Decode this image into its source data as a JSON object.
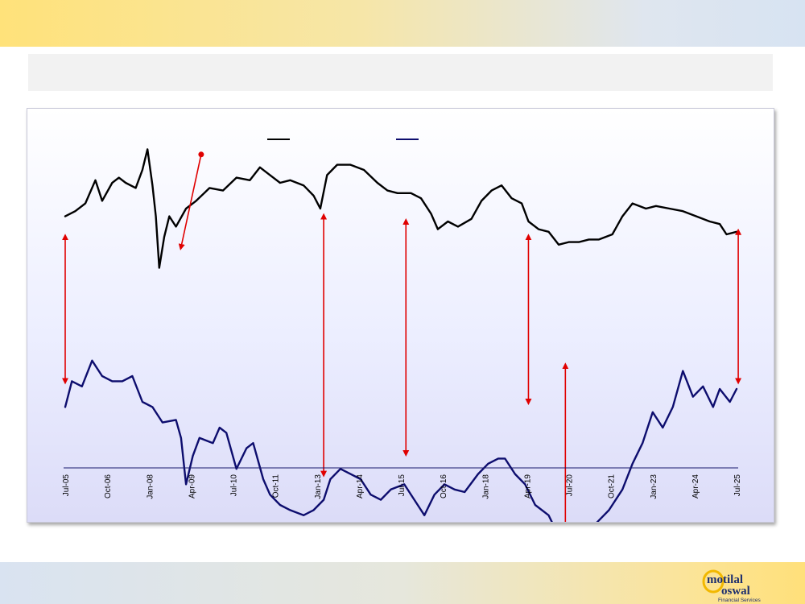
{
  "chart_data": {
    "type": "line",
    "x_tick_labels": [
      "Jul-05",
      "Oct-06",
      "Jan-08",
      "Apr-09",
      "Jul-10",
      "Oct-11",
      "Jan-13",
      "Apr-14",
      "Jul-15",
      "Oct-16",
      "Jan-18",
      "Apr-19",
      "Jul-20",
      "Oct-21",
      "Jan-23",
      "Apr-24",
      "Jul-25"
    ],
    "x_range": [
      "Jul-05",
      "Jul-25"
    ],
    "grid": false,
    "legend_placement": "top-center",
    "series": [
      {
        "color": "#000000",
        "values": [
          [
            2005.5,
            52
          ],
          [
            2005.8,
            54
          ],
          [
            2006.1,
            57
          ],
          [
            2006.4,
            66
          ],
          [
            2006.6,
            58
          ],
          [
            2006.9,
            65
          ],
          [
            2007.1,
            67
          ],
          [
            2007.3,
            65
          ],
          [
            2007.6,
            63
          ],
          [
            2007.8,
            70
          ],
          [
            2007.95,
            78
          ],
          [
            2008.1,
            64
          ],
          [
            2008.2,
            52
          ],
          [
            2008.3,
            32
          ],
          [
            2008.45,
            44
          ],
          [
            2008.6,
            52
          ],
          [
            2008.8,
            48
          ],
          [
            2009.1,
            55
          ],
          [
            2009.4,
            58
          ],
          [
            2009.8,
            63
          ],
          [
            2010.2,
            62
          ],
          [
            2010.6,
            67
          ],
          [
            2011.0,
            66
          ],
          [
            2011.3,
            71
          ],
          [
            2011.6,
            68
          ],
          [
            2011.9,
            65
          ],
          [
            2012.2,
            66
          ],
          [
            2012.6,
            64
          ],
          [
            2012.9,
            60
          ],
          [
            2013.1,
            55
          ],
          [
            2013.3,
            68
          ],
          [
            2013.6,
            72
          ],
          [
            2014.0,
            72
          ],
          [
            2014.4,
            70
          ],
          [
            2014.8,
            65
          ],
          [
            2015.1,
            62
          ],
          [
            2015.4,
            61
          ],
          [
            2015.8,
            61
          ],
          [
            2016.1,
            59
          ],
          [
            2016.4,
            53
          ],
          [
            2016.6,
            47
          ],
          [
            2016.9,
            50
          ],
          [
            2017.2,
            48
          ],
          [
            2017.6,
            51
          ],
          [
            2017.9,
            58
          ],
          [
            2018.2,
            62
          ],
          [
            2018.5,
            64
          ],
          [
            2018.8,
            59
          ],
          [
            2019.1,
            57
          ],
          [
            2019.3,
            50
          ],
          [
            2019.6,
            47
          ],
          [
            2019.9,
            46
          ],
          [
            2020.2,
            41
          ],
          [
            2020.5,
            42
          ],
          [
            2020.8,
            42
          ],
          [
            2021.1,
            43
          ],
          [
            2021.4,
            43
          ],
          [
            2021.8,
            45
          ],
          [
            2022.1,
            52
          ],
          [
            2022.4,
            57
          ],
          [
            2022.8,
            55
          ],
          [
            2023.1,
            56
          ],
          [
            2023.5,
            55
          ],
          [
            2023.9,
            54
          ],
          [
            2024.3,
            52
          ],
          [
            2024.7,
            50
          ],
          [
            2025.0,
            49
          ],
          [
            2025.2,
            45
          ],
          [
            2025.5,
            46
          ]
        ]
      },
      {
        "color": "#0d0d6e",
        "values": [
          [
            2005.5,
            -22
          ],
          [
            2005.7,
            -12
          ],
          [
            2006.0,
            -14
          ],
          [
            2006.3,
            -4
          ],
          [
            2006.6,
            -10
          ],
          [
            2006.9,
            -12
          ],
          [
            2007.2,
            -12
          ],
          [
            2007.5,
            -10
          ],
          [
            2007.8,
            -20
          ],
          [
            2008.1,
            -22
          ],
          [
            2008.4,
            -28
          ],
          [
            2008.8,
            -27
          ],
          [
            2008.95,
            -34
          ],
          [
            2009.1,
            -52
          ],
          [
            2009.3,
            -41
          ],
          [
            2009.5,
            -34
          ],
          [
            2009.9,
            -36
          ],
          [
            2010.1,
            -30
          ],
          [
            2010.3,
            -32
          ],
          [
            2010.6,
            -46
          ],
          [
            2010.9,
            -38
          ],
          [
            2011.1,
            -36
          ],
          [
            2011.4,
            -50
          ],
          [
            2011.6,
            -56
          ],
          [
            2011.9,
            -60
          ],
          [
            2012.2,
            -62
          ],
          [
            2012.6,
            -64
          ],
          [
            2012.9,
            -62
          ],
          [
            2013.2,
            -58
          ],
          [
            2013.4,
            -50
          ],
          [
            2013.7,
            -46
          ],
          [
            2014.0,
            -48
          ],
          [
            2014.3,
            -50
          ],
          [
            2014.6,
            -56
          ],
          [
            2014.9,
            -58
          ],
          [
            2015.2,
            -54
          ],
          [
            2015.6,
            -52
          ],
          [
            2015.9,
            -58
          ],
          [
            2016.2,
            -64
          ],
          [
            2016.5,
            -56
          ],
          [
            2016.8,
            -52
          ],
          [
            2017.1,
            -54
          ],
          [
            2017.4,
            -55
          ],
          [
            2017.8,
            -48
          ],
          [
            2018.1,
            -44
          ],
          [
            2018.4,
            -42
          ],
          [
            2018.6,
            -42
          ],
          [
            2018.9,
            -48
          ],
          [
            2019.2,
            -52
          ],
          [
            2019.5,
            -60
          ],
          [
            2019.9,
            -64
          ],
          [
            2020.2,
            -72
          ],
          [
            2020.5,
            -76
          ],
          [
            2020.8,
            -72
          ],
          [
            2021.1,
            -70
          ],
          [
            2021.4,
            -66
          ],
          [
            2021.7,
            -62
          ],
          [
            2022.1,
            -54
          ],
          [
            2022.4,
            -44
          ],
          [
            2022.7,
            -36
          ],
          [
            2023.0,
            -24
          ],
          [
            2023.3,
            -30
          ],
          [
            2023.6,
            -22
          ],
          [
            2023.9,
            -8
          ],
          [
            2024.2,
            -18
          ],
          [
            2024.5,
            -14
          ],
          [
            2024.8,
            -22
          ],
          [
            2025.0,
            -15
          ],
          [
            2025.3,
            -20
          ],
          [
            2025.5,
            -15
          ]
        ]
      }
    ],
    "annotations": [
      {
        "type": "gap-arrow",
        "x": 2005.5,
        "from": 44,
        "to": -12
      },
      {
        "type": "gap-arrow",
        "x": 2013.2,
        "from": 52,
        "to": -48
      },
      {
        "type": "gap-arrow",
        "x": 2015.65,
        "from": 50,
        "to": -40
      },
      {
        "type": "gap-arrow",
        "x": 2019.3,
        "from": 44,
        "to": -20
      },
      {
        "type": "gap-arrow",
        "x": 2020.4,
        "from": -6,
        "to": -70
      },
      {
        "type": "gap-arrow",
        "x": 2025.55,
        "from": 46,
        "to": -12
      },
      {
        "type": "pointer-arrow",
        "x_from": 2009.55,
        "y_from": 76,
        "x_to": 2008.95,
        "y_to": 40
      }
    ]
  },
  "colors": {
    "arrow": "#e00000",
    "axis": "#1a1a6e"
  }
}
